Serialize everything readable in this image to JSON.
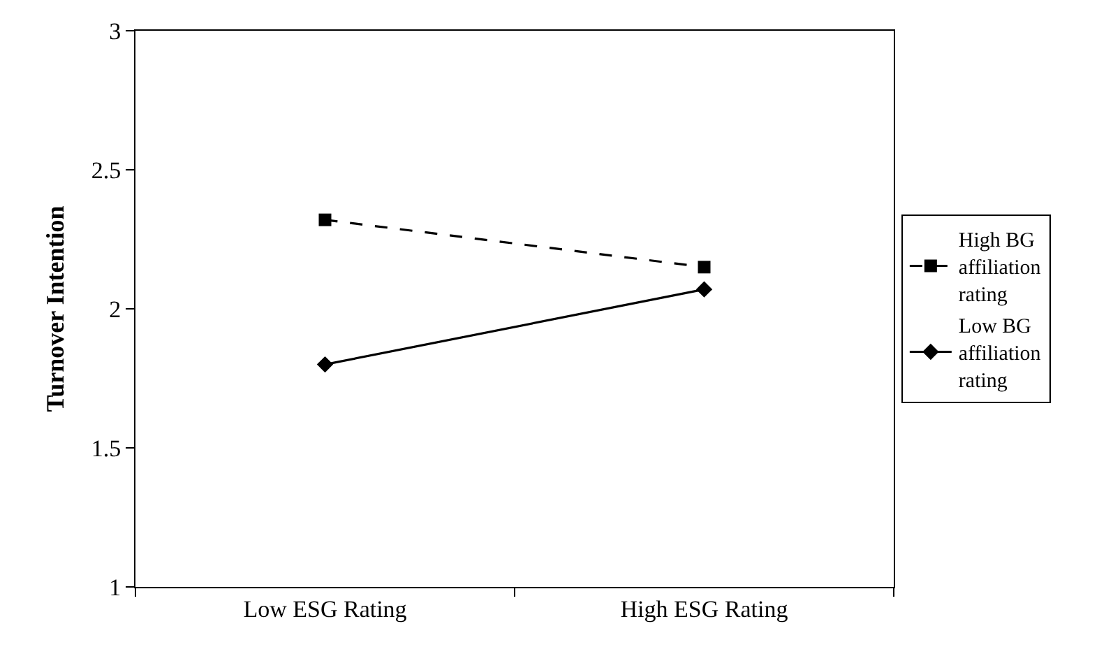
{
  "chart_data": {
    "type": "line",
    "ylabel": "Turnover Intention",
    "categories": [
      "Low ESG Rating",
      "High ESG Rating"
    ],
    "series": [
      {
        "name": "High BG affiliation rating",
        "color": "#000000",
        "values": [
          2.32,
          2.15
        ],
        "marker": "square",
        "line_style": "dashed"
      },
      {
        "name": "Low BG affiliation rating",
        "color": "#000000",
        "values": [
          1.8,
          2.07
        ],
        "marker": "diamond",
        "line_style": "solid"
      }
    ],
    "ylim": [
      1,
      3
    ],
    "yticks": [
      1,
      1.5,
      2,
      2.5,
      3
    ],
    "grid": false,
    "legend": "right"
  }
}
